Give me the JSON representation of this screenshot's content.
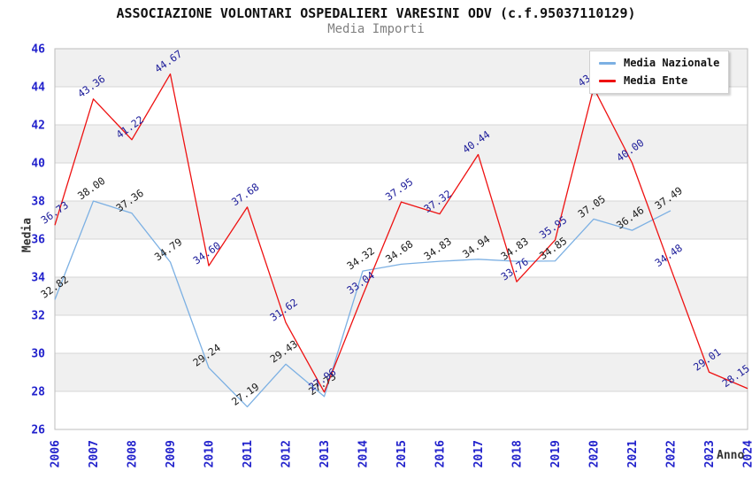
{
  "header": {
    "title": "ASSOCIAZIONE VOLONTARI OSPEDALIERI VARESINI ODV (c.f.95037110129)",
    "subtitle": "Media Importi"
  },
  "axes": {
    "ylabel": "Media",
    "xlabel": "Anno"
  },
  "legend": {
    "position": "top-right",
    "items": [
      {
        "label": "Media Nazionale",
        "color": "#7CB0E3"
      },
      {
        "label": "Media Ente",
        "color": "#EE1111"
      }
    ]
  },
  "chart_data": {
    "type": "line",
    "title": "ASSOCIAZIONE VOLONTARI OSPEDALIERI VARESINI ODV (c.f.95037110129)",
    "subtitle": "Media Importi",
    "xlabel": "Anno",
    "ylabel": "Media",
    "categories": [
      2006,
      2007,
      2008,
      2009,
      2010,
      2011,
      2012,
      2013,
      2014,
      2015,
      2016,
      2017,
      2018,
      2019,
      2020,
      2021,
      2022,
      2023,
      2024
    ],
    "series": [
      {
        "name": "Media Nazionale",
        "color": "#7CB0E3",
        "label_color": "#1A1A1A",
        "values": [
          32.82,
          38.0,
          37.36,
          34.79,
          29.24,
          27.19,
          29.43,
          27.73,
          34.32,
          34.68,
          34.83,
          34.94,
          34.83,
          34.85,
          37.05,
          36.46,
          37.49,
          null,
          null
        ]
      },
      {
        "name": "Media Ente",
        "color": "#EE1111",
        "label_color": "#1B1B99",
        "values": [
          36.73,
          43.36,
          41.22,
          44.67,
          34.6,
          37.68,
          31.62,
          27.96,
          33.04,
          37.95,
          37.32,
          40.44,
          33.76,
          35.95,
          43.94,
          40.0,
          34.48,
          29.01,
          28.15
        ]
      }
    ],
    "ylim": [
      26,
      46
    ],
    "ytick_step": 2,
    "grid": true,
    "band_colors": [
      "#F0F0F0",
      "#FFFFFF"
    ],
    "gridline_color": "#D6D6D6",
    "plot_border_color": "#BDBDBD",
    "axis_tick_color": "#2222CC",
    "legend_position": "top-right"
  }
}
